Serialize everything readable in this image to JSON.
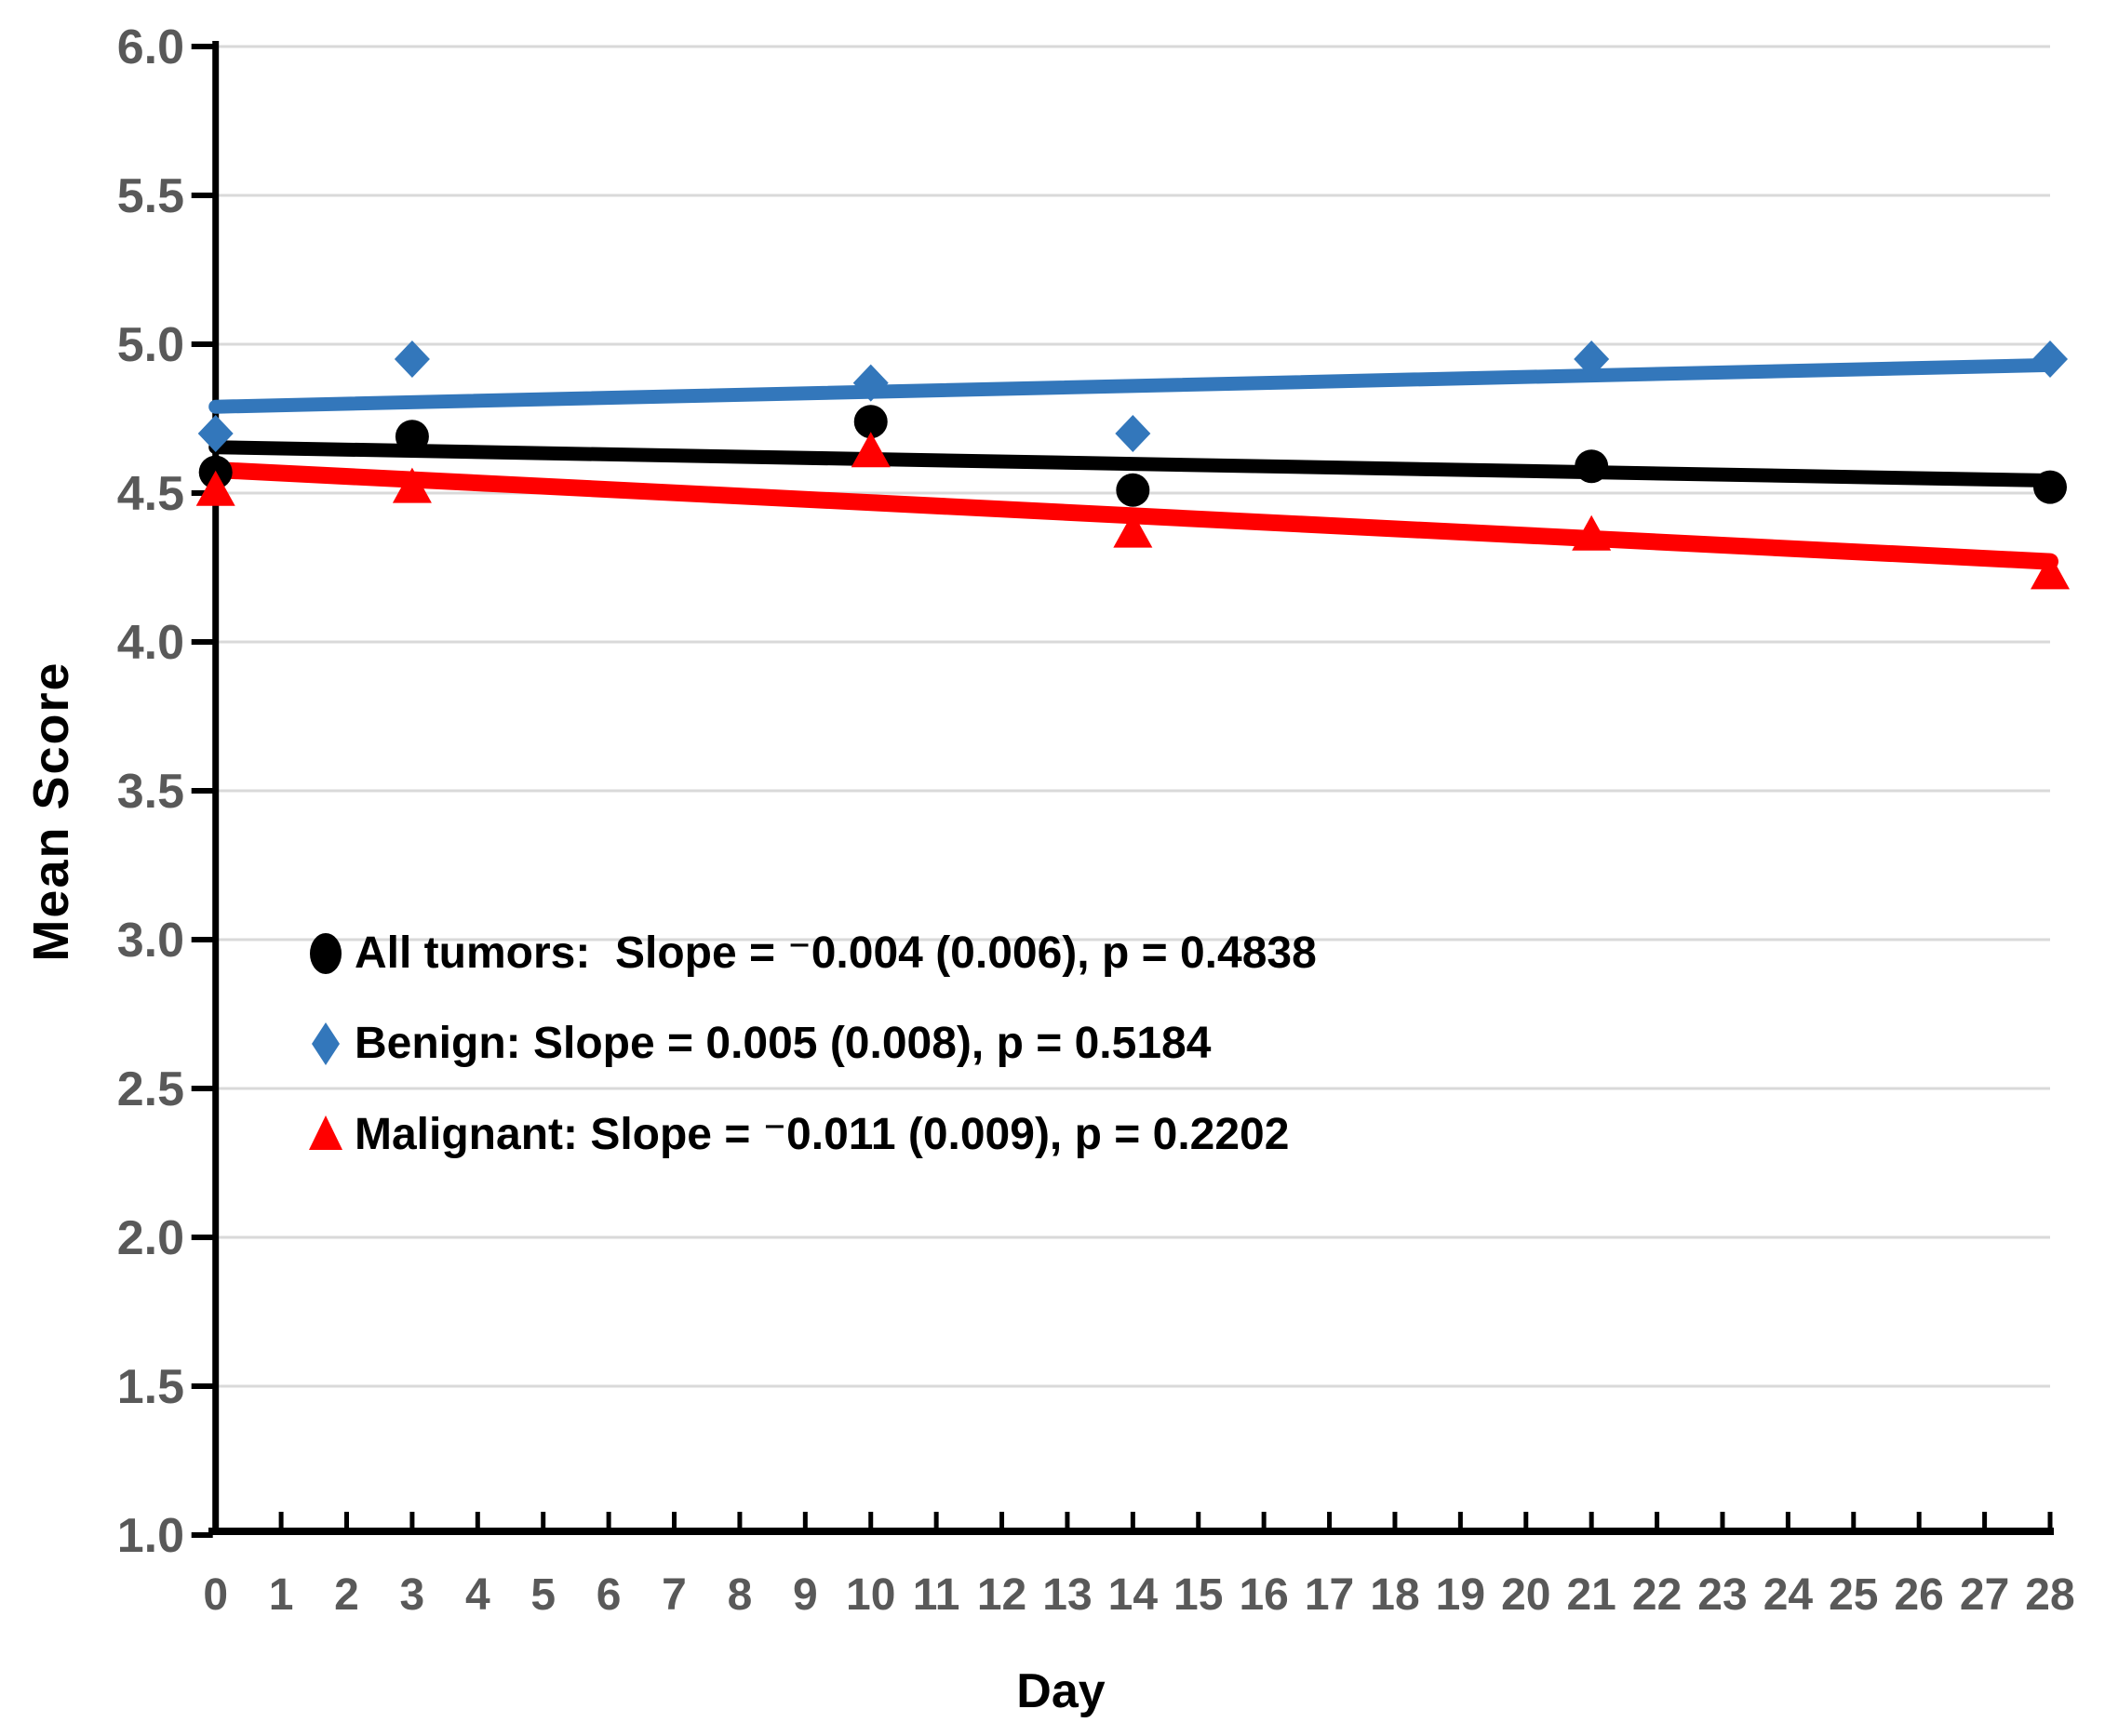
{
  "chart_data": {
    "type": "scatter",
    "title": "",
    "xlabel": "Day",
    "ylabel": "Mean Score",
    "xlim": [
      0,
      28
    ],
    "ylim": [
      1.0,
      6.0
    ],
    "grid": "horizontal-only",
    "legend_position": "inside-left-middle",
    "x": [
      0,
      3,
      10,
      14,
      21,
      28
    ],
    "series": [
      {
        "name": "All tumors",
        "marker": "circle",
        "color": "#000000",
        "values": [
          4.57,
          4.69,
          4.74,
          4.51,
          4.59,
          4.52
        ],
        "trendline": {
          "slope": -0.004,
          "intercept": 4.654,
          "stderr": 0.006,
          "p": 0.4838
        },
        "legend_text": "All tumors:  Slope = ⁻0.004 (0.006), p = 0.4838"
      },
      {
        "name": "Benign",
        "marker": "diamond",
        "color": "#3377BB",
        "values": [
          4.7,
          4.95,
          4.87,
          4.7,
          4.95,
          4.95
        ],
        "trendline": {
          "slope": 0.005,
          "intercept": 4.79,
          "stderr": 0.008,
          "p": 0.5184
        },
        "legend_text": "Benign: Slope = 0.005 (0.008), p = 0.5184"
      },
      {
        "name": "Malignant",
        "marker": "triangle",
        "color": "#FF0000",
        "values": [
          4.51,
          4.52,
          4.64,
          4.37,
          4.36,
          4.23
        ],
        "trendline": {
          "slope": -0.011,
          "intercept": 4.578,
          "stderr": 0.009,
          "p": 0.2202
        },
        "legend_text": "Malignant: Slope = ⁻0.011 (0.009), p = 0.2202"
      }
    ],
    "x_tick_labels": [
      "0",
      "1",
      "2",
      "3",
      "4",
      "5",
      "6",
      "7",
      "8",
      "9",
      "10",
      "11",
      "12",
      "13",
      "14",
      "15",
      "16",
      "17",
      "18",
      "19",
      "20",
      "21",
      "22",
      "23",
      "24",
      "25",
      "26",
      "27",
      "28"
    ],
    "y_tick_labels": [
      "1.0",
      "1.5",
      "2.0",
      "2.5",
      "3.0",
      "3.5",
      "4.0",
      "4.5",
      "5.0",
      "5.5",
      "6.0"
    ],
    "colors": {
      "axis": "#000000",
      "tick_labels": "#595959",
      "gridlines": "#D9D9D9",
      "background": "#FFFFFF"
    }
  }
}
